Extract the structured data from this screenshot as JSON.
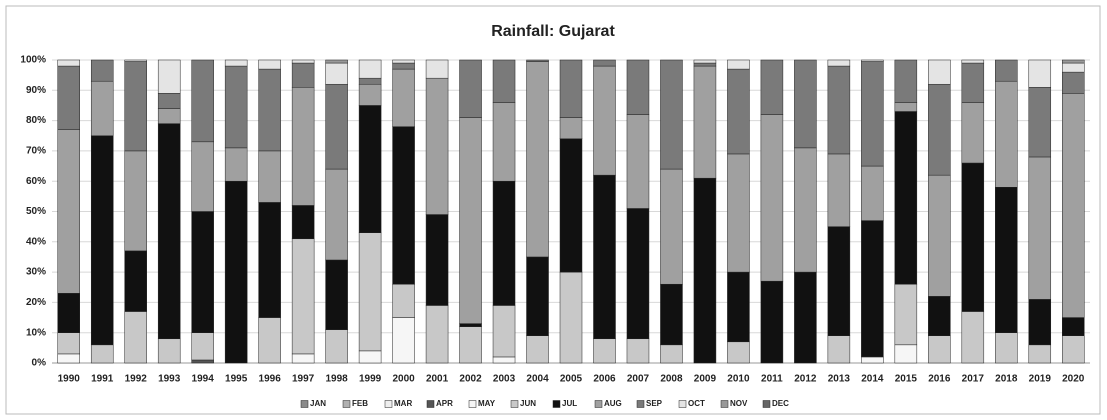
{
  "chart_data": {
    "type": "stacked_bar",
    "title": "Rainfall: Gujarat",
    "categories": [
      "1990",
      "1991",
      "1992",
      "1993",
      "1994",
      "1995",
      "1996",
      "1997",
      "1998",
      "1999",
      "2000",
      "2001",
      "2002",
      "2003",
      "2004",
      "2005",
      "2006",
      "2007",
      "2008",
      "2009",
      "2010",
      "2011",
      "2012",
      "2013",
      "2014",
      "2015",
      "2016",
      "2017",
      "2018",
      "2019",
      "2020"
    ],
    "series": [
      {
        "name": "JAN",
        "color": "#8a8a8a",
        "values": [
          0,
          0,
          0,
          0,
          0,
          0,
          0,
          0,
          0,
          0,
          0,
          0,
          0,
          0,
          0,
          0,
          0,
          0,
          0,
          0,
          0,
          0,
          0,
          0,
          0,
          0,
          0,
          0,
          0,
          0,
          0
        ]
      },
      {
        "name": "FEB",
        "color": "#b0b0b0",
        "values": [
          0,
          0,
          0,
          0,
          0,
          0,
          0,
          0,
          0,
          0,
          0,
          0,
          0,
          0,
          0,
          0,
          0,
          0,
          0,
          0,
          0,
          0,
          0,
          0,
          0,
          0,
          0,
          0,
          0,
          0,
          0
        ]
      },
      {
        "name": "MAR",
        "color": "#eeeeee",
        "values": [
          0,
          0,
          0,
          0,
          0,
          0,
          0,
          0,
          0,
          0,
          0,
          0,
          0,
          0,
          0,
          0,
          0,
          0,
          0,
          0,
          0,
          0,
          0,
          0,
          0,
          0,
          0,
          0,
          0,
          0,
          0
        ]
      },
      {
        "name": "APR",
        "color": "#555555",
        "values": [
          0,
          0,
          0,
          0,
          1,
          0,
          0,
          0,
          0,
          0,
          0,
          0,
          0,
          0,
          0,
          0,
          0,
          0,
          0,
          0,
          0,
          0,
          0,
          0,
          0,
          0,
          0,
          0,
          0,
          0,
          0
        ]
      },
      {
        "name": "MAY",
        "color": "#f6f6f6",
        "values": [
          3,
          0,
          0,
          0,
          0,
          0,
          0,
          3,
          0,
          4,
          15,
          0,
          0,
          2,
          0,
          0,
          0,
          0,
          0,
          0,
          0,
          0,
          0,
          0,
          2,
          6,
          0,
          0,
          0,
          0,
          0
        ]
      },
      {
        "name": "JUN",
        "color": "#c8c8c8",
        "values": [
          7,
          6,
          17,
          8,
          9,
          0,
          15,
          38,
          11,
          39,
          11,
          19,
          12,
          17,
          9,
          30,
          8,
          8,
          6,
          0,
          7,
          0,
          0,
          9,
          0,
          20,
          9,
          17,
          10,
          6,
          9
        ]
      },
      {
        "name": "JUL",
        "color": "#111111",
        "values": [
          13,
          69,
          20,
          71,
          40,
          60,
          38,
          11,
          23,
          42,
          52,
          30,
          1,
          41,
          26,
          44,
          54,
          43,
          20,
          61,
          23,
          27,
          30,
          36,
          45,
          57,
          13,
          49,
          48,
          15,
          6
        ]
      },
      {
        "name": "AUG",
        "color": "#a0a0a0",
        "values": [
          54,
          18,
          33,
          5,
          23,
          11,
          17,
          39,
          30,
          7,
          19,
          45,
          68,
          26,
          64.5,
          7,
          36,
          31,
          38,
          37,
          39,
          55,
          41,
          24,
          18,
          3,
          40,
          20,
          35,
          47,
          74
        ]
      },
      {
        "name": "SEP",
        "color": "#7a7a7a",
        "values": [
          21,
          7,
          29.5,
          5,
          27,
          27,
          27,
          8,
          28,
          2,
          2,
          0,
          19,
          14,
          0.5,
          19,
          2,
          18,
          36,
          1,
          28,
          18,
          29,
          29,
          34.5,
          14,
          30,
          13,
          7,
          23,
          7
        ]
      },
      {
        "name": "OCT",
        "color": "#e4e4e4",
        "values": [
          2,
          0,
          0.5,
          11,
          0,
          2,
          3,
          1,
          7,
          6,
          1,
          6,
          0,
          0,
          0,
          0,
          0,
          0,
          0,
          1,
          3,
          0,
          0,
          2,
          0.5,
          0,
          8,
          1,
          0,
          9,
          3
        ]
      },
      {
        "name": "NOV",
        "color": "#999999",
        "values": [
          0,
          0,
          0,
          0,
          0,
          0,
          0,
          0,
          1,
          0,
          0,
          0,
          0,
          0,
          0,
          0,
          0,
          0,
          0,
          0,
          0,
          0,
          0,
          0,
          0,
          0,
          0,
          0,
          0,
          0,
          1
        ]
      },
      {
        "name": "DEC",
        "color": "#666666",
        "values": [
          0,
          0,
          0,
          0,
          0,
          0,
          0,
          0,
          0,
          0,
          0,
          0,
          0,
          0,
          0,
          0,
          0,
          0,
          0,
          0,
          0,
          0,
          0,
          0,
          0,
          0,
          0,
          0,
          0,
          0,
          0
        ]
      }
    ],
    "ylim": [
      0,
      100
    ],
    "yticks": [
      {
        "value": 0,
        "label": "0%"
      },
      {
        "value": 10,
        "label": "10%"
      },
      {
        "value": 20,
        "label": "20%"
      },
      {
        "value": 30,
        "label": "30%"
      },
      {
        "value": 40,
        "label": "40%"
      },
      {
        "value": 50,
        "label": "50%"
      },
      {
        "value": 60,
        "label": "60%"
      },
      {
        "value": 70,
        "label": "70%"
      },
      {
        "value": 80,
        "label": "80%"
      },
      {
        "value": 90,
        "label": "90%"
      },
      {
        "value": 100,
        "label": "100%"
      }
    ],
    "grid": true,
    "legend": "bottom"
  }
}
